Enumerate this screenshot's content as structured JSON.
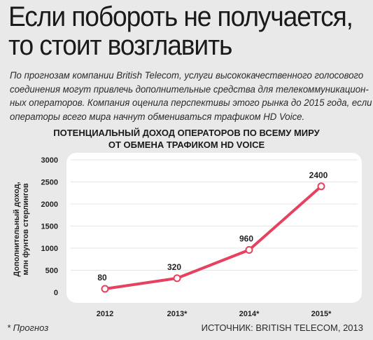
{
  "title_lines": [
    "Если побороть не получается,",
    "то стоит возглавить"
  ],
  "lead_lines": [
    "По прогнозам компании British Telecom, услуги высококачественного голосового",
    "соединения могут привлечь дополнительные средства для телекоммуникацион-",
    "ных операторов. Компания оценила перспективы этого рынка до 2015 года, если",
    "операторы всего мира начнут обмениваться трафиком HD Voice."
  ],
  "footnote": "* Прогноз",
  "source": "ИСТОЧНИК: BRITISH TELECOM, 2013",
  "colors": {
    "background": "#e9e9e9",
    "plot_background": "#ffffff",
    "line": "#e8415f",
    "grid": "#e6e6e6"
  },
  "chart_data": {
    "type": "line",
    "title_lines": [
      "ПОТЕНЦИАЛЬНЫЙ ДОХОД ОПЕРАТОРОВ ПО ВСЕМУ МИРУ",
      "ОТ ОБМЕНА ТРАФИКОМ HD VOICE"
    ],
    "ylabel_lines": [
      "Дополнительный доход,",
      "млн фунтов стерлингов"
    ],
    "xlabel": "",
    "categories": [
      "2012",
      "2013*",
      "2014*",
      "2015*"
    ],
    "values": [
      80,
      320,
      960,
      2400
    ],
    "data_labels": [
      "80",
      "320",
      "960",
      "2400"
    ],
    "yticks": [
      0,
      500,
      1000,
      1500,
      2000,
      2500,
      3000
    ],
    "ytick_labels": [
      "0",
      "500",
      "1000",
      "1500",
      "2000",
      "2500",
      "3000"
    ],
    "ylim": [
      0,
      3000
    ],
    "grid": true,
    "legend": "none"
  }
}
